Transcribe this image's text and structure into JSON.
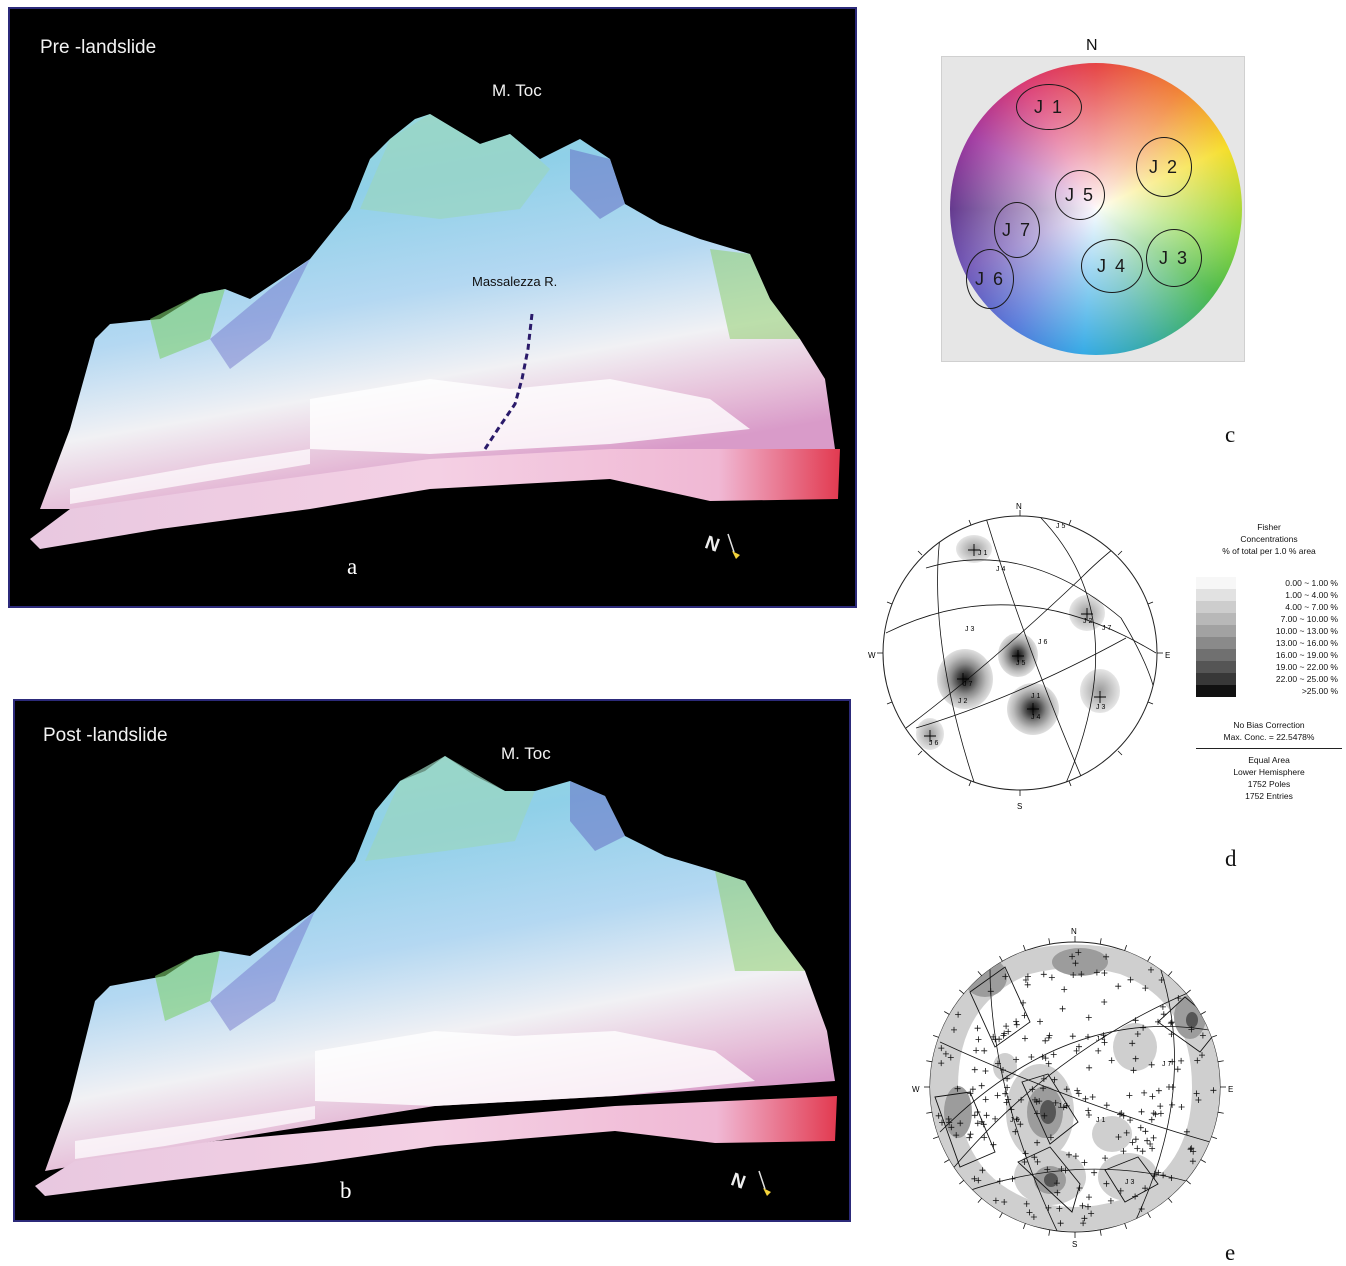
{
  "panel_a": {
    "title": "Pre -landslide",
    "peak": "M. Toc",
    "river": "Massalezza R.",
    "north": "N",
    "letter": "a"
  },
  "panel_b": {
    "title": "Post -landslide",
    "peak": "M. Toc",
    "north": "N",
    "letter": "b"
  },
  "panel_c": {
    "north": "N",
    "letter": "c",
    "sets": [
      "J 1",
      "J 2",
      "J 3",
      "J 4",
      "J 5",
      "J 6",
      "J 7"
    ]
  },
  "panel_d": {
    "letter": "d",
    "directions": {
      "n": "N",
      "s": "S",
      "e": "E",
      "w": "W"
    },
    "pole_labels": [
      "J 1",
      "J 2",
      "J 3",
      "J 4",
      "J 5",
      "J 6",
      "J 7"
    ],
    "plane_labels": [
      "J 1",
      "J 2",
      "J 3",
      "J 4",
      "J 5",
      "J 6",
      "J 7"
    ],
    "legend": {
      "title1": "Fisher",
      "title2": "Concentrations",
      "title3": "% of total per 1.0 % area",
      "ranges": [
        "0.00 ~  1.00 %",
        "1.00 ~  4.00 %",
        "4.00 ~  7.00 %",
        "7.00 ~ 10.00 %",
        "10.00 ~ 13.00 %",
        "13.00 ~ 16.00 %",
        "16.00 ~ 19.00 %",
        "19.00 ~ 22.00 %",
        "22.00 ~ 25.00 %",
        ">25.00 %"
      ],
      "shades": [
        "#f7f7f7",
        "#e2e2e2",
        "#cdcdcd",
        "#b8b8b8",
        "#a2a2a2",
        "#8a8a8a",
        "#707070",
        "#555555",
        "#383838",
        "#111111"
      ],
      "bias": "No Bias Correction",
      "max": "Max. Conc. = 22.5478%",
      "projection": "Equal Area",
      "hemisphere": "Lower Hemisphere",
      "poles": "1752 Poles",
      "entries": "1752 Entries"
    }
  },
  "panel_e": {
    "letter": "e",
    "directions": {
      "n": "N",
      "s": "S",
      "e": "E",
      "w": "W"
    },
    "labels": [
      "J 1",
      "J 2",
      "J 3",
      "J 4",
      "J 6",
      "J 7"
    ]
  }
}
